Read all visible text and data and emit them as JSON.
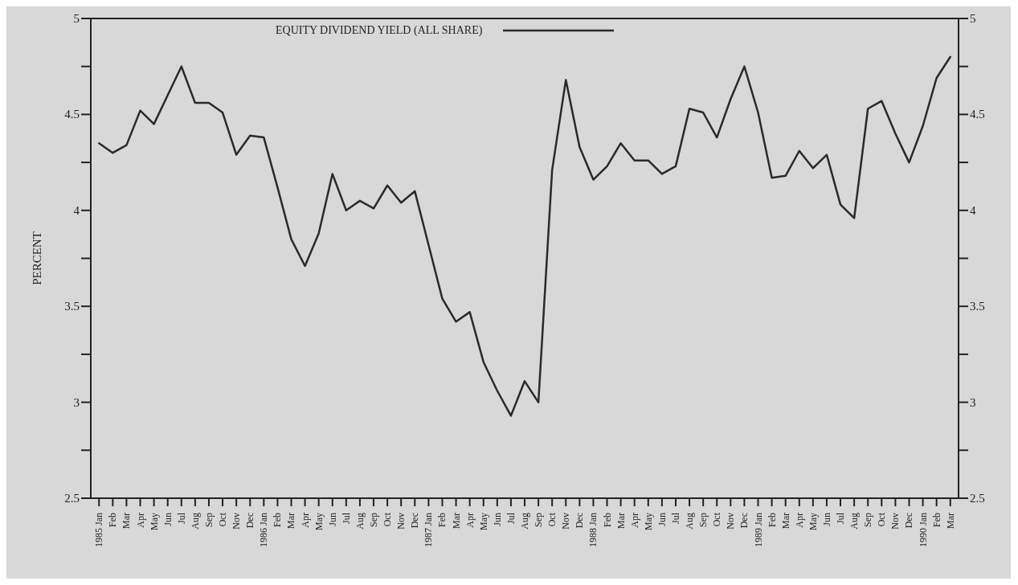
{
  "chart_data": {
    "type": "line",
    "ylabel": "PERCENT",
    "categories": [
      "1985 Jan",
      "Feb",
      "Mar",
      "Apr",
      "May",
      "Jun",
      "Jul",
      "Aug",
      "Sep",
      "Oct",
      "Nov",
      "Dec",
      "1986 Jan",
      "Feb",
      "Mar",
      "Apr",
      "May",
      "Jun",
      "Jul",
      "Aug",
      "Sep",
      "Oct",
      "Nov",
      "Dec",
      "1987 Jan",
      "Feb",
      "Mar",
      "Apr",
      "May",
      "Jun",
      "Jul",
      "Aug",
      "Sep",
      "Oct",
      "Nov",
      "Dec",
      "1988 Jan",
      "Feb",
      "Mar",
      "Apr",
      "May",
      "Jun",
      "Jul",
      "Aug",
      "Sep",
      "Oct",
      "Nov",
      "Dec",
      "1989 Jan",
      "Feb",
      "Mar",
      "Apr",
      "May",
      "Jun",
      "Jul",
      "Aug",
      "Sep",
      "Oct",
      "Nov",
      "Dec",
      "1990 Jan",
      "Feb",
      "Mar"
    ],
    "series": [
      {
        "name": "EQUITY DIVIDEND YIELD (ALL SHARE)",
        "color": "#2a2a2a",
        "values": [
          4.35,
          4.3,
          4.34,
          4.52,
          4.45,
          4.6,
          4.75,
          4.56,
          4.56,
          4.51,
          4.29,
          4.39,
          4.38,
          4.12,
          3.85,
          3.71,
          3.88,
          4.19,
          4.0,
          4.05,
          4.01,
          4.13,
          4.04,
          4.1,
          3.82,
          3.54,
          3.42,
          3.47,
          3.21,
          3.06,
          2.93,
          3.11,
          3.0,
          4.21,
          4.68,
          4.33,
          4.16,
          4.23,
          4.35,
          4.26,
          4.26,
          4.19,
          4.23,
          4.53,
          4.51,
          4.38,
          4.58,
          4.75,
          4.51,
          4.17,
          4.18,
          4.31,
          4.22,
          4.29,
          4.03,
          3.96,
          4.53,
          4.57,
          4.4,
          4.25,
          4.44,
          4.69,
          4.8
        ]
      }
    ],
    "ylim": [
      2.5,
      5
    ],
    "yticks": [
      2.5,
      {
        "value": 2.75,
        "label": null
      },
      3,
      {
        "value": 3.25,
        "label": null
      },
      3.5,
      {
        "value": 3.75,
        "label": null
      },
      4,
      {
        "value": 4.25,
        "label": null
      },
      4.5,
      {
        "value": 4.75,
        "label": null
      },
      5
    ],
    "y2lim": [
      2.5,
      5
    ],
    "y2ticks": [
      2.5,
      {
        "value": 2.75,
        "label": null
      },
      3,
      {
        "value": 3.25,
        "label": null
      },
      3.5,
      {
        "value": 3.75,
        "label": null
      },
      4,
      {
        "value": 4.25,
        "label": null
      },
      4.5,
      {
        "value": 4.75,
        "label": null
      },
      5
    ],
    "grid": false,
    "legend": "top",
    "marker": "none",
    "line_style": "solid"
  }
}
